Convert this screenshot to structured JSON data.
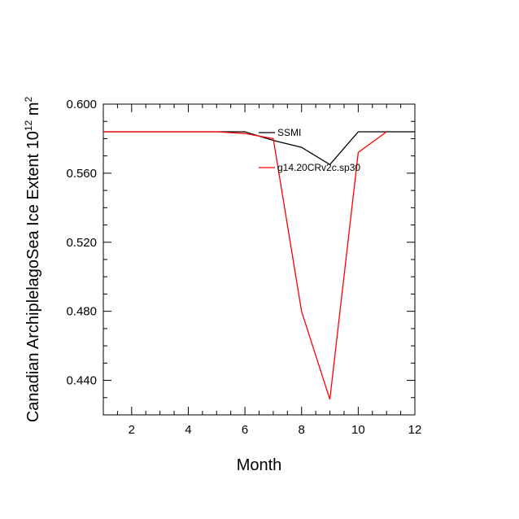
{
  "chart_data": {
    "type": "line",
    "xlabel": "Month",
    "ylabel": "Canadian ArchiplelagoSea Ice Extent 10",
    "ylabel_sup": "12",
    "ylabel_tail": " m",
    "ylabel_sup2": "2",
    "xlim": [
      1,
      12
    ],
    "ylim": [
      0.42,
      0.6
    ],
    "xticks": [
      2,
      4,
      6,
      8,
      10,
      12
    ],
    "xtick_labels": [
      "2",
      "4",
      "6",
      "8",
      "10",
      "12"
    ],
    "yticks": [
      0.44,
      0.48,
      0.52,
      0.56,
      0.6
    ],
    "ytick_labels": [
      "0.440",
      "0.480",
      "0.520",
      "0.560",
      "0.600"
    ],
    "grid": false,
    "legend_position": "top-right inside",
    "series": [
      {
        "name": "SSMI",
        "color": "#000000",
        "x": [
          1,
          2,
          3,
          4,
          5,
          6,
          7,
          8,
          9,
          10,
          11,
          12
        ],
        "y": [
          0.584,
          0.584,
          0.584,
          0.584,
          0.584,
          0.584,
          0.579,
          0.575,
          0.565,
          0.584,
          0.584,
          0.584
        ]
      },
      {
        "name": "g14.20CRv2c.sp30",
        "color": "#ff0000",
        "x": [
          1,
          2,
          3,
          4,
          5,
          6,
          7,
          8,
          9,
          10,
          11
        ],
        "y": [
          0.584,
          0.584,
          0.584,
          0.584,
          0.584,
          0.583,
          0.58,
          0.48,
          0.429,
          0.572,
          0.584
        ]
      }
    ]
  }
}
